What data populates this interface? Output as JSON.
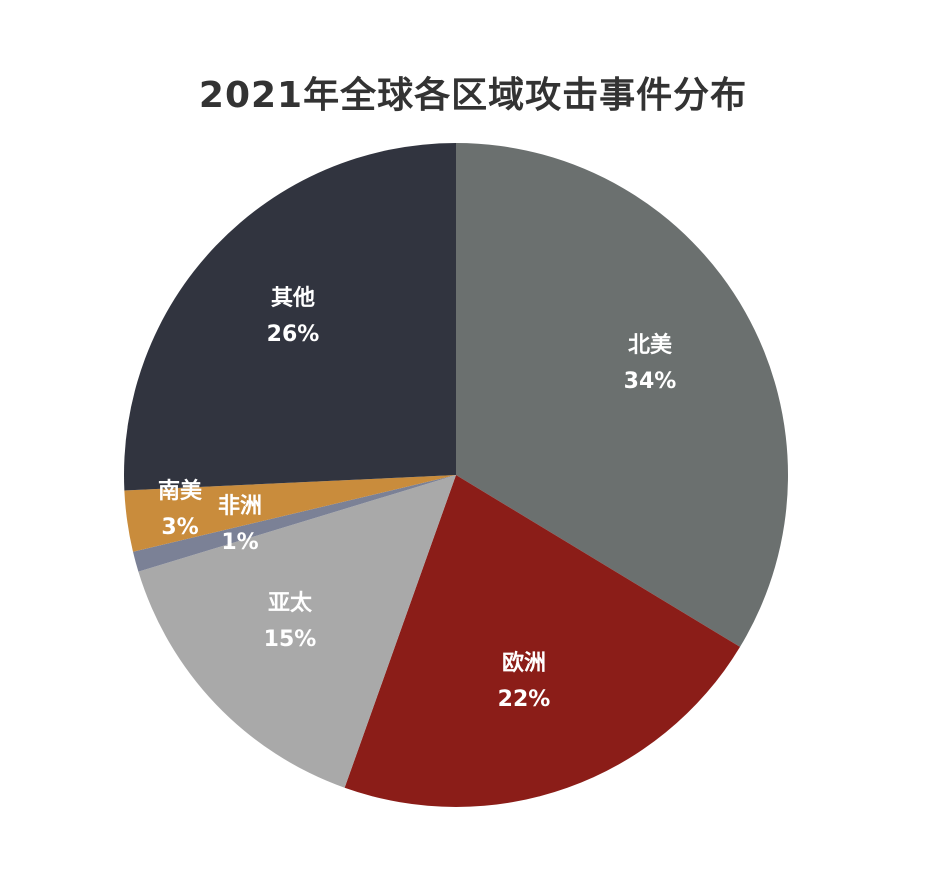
{
  "chart_data": {
    "type": "pie",
    "title": "2021年全球各区域攻击事件分布",
    "slices": [
      {
        "label": "北美",
        "value": 34,
        "value_text": "34%",
        "color": "#6b706f"
      },
      {
        "label": "欧洲",
        "value": 22,
        "value_text": "22%",
        "color": "#8b1d18"
      },
      {
        "label": "亚太",
        "value": 15,
        "value_text": "15%",
        "color": "#a9a9a9"
      },
      {
        "label": "非洲",
        "value": 1,
        "value_text": "1%",
        "color": "#7b8196"
      },
      {
        "label": "南美",
        "value": 3,
        "value_text": "3%",
        "color": "#c98c3c"
      },
      {
        "label": "其他",
        "value": 26,
        "value_text": "26%",
        "color": "#31343f"
      }
    ]
  }
}
